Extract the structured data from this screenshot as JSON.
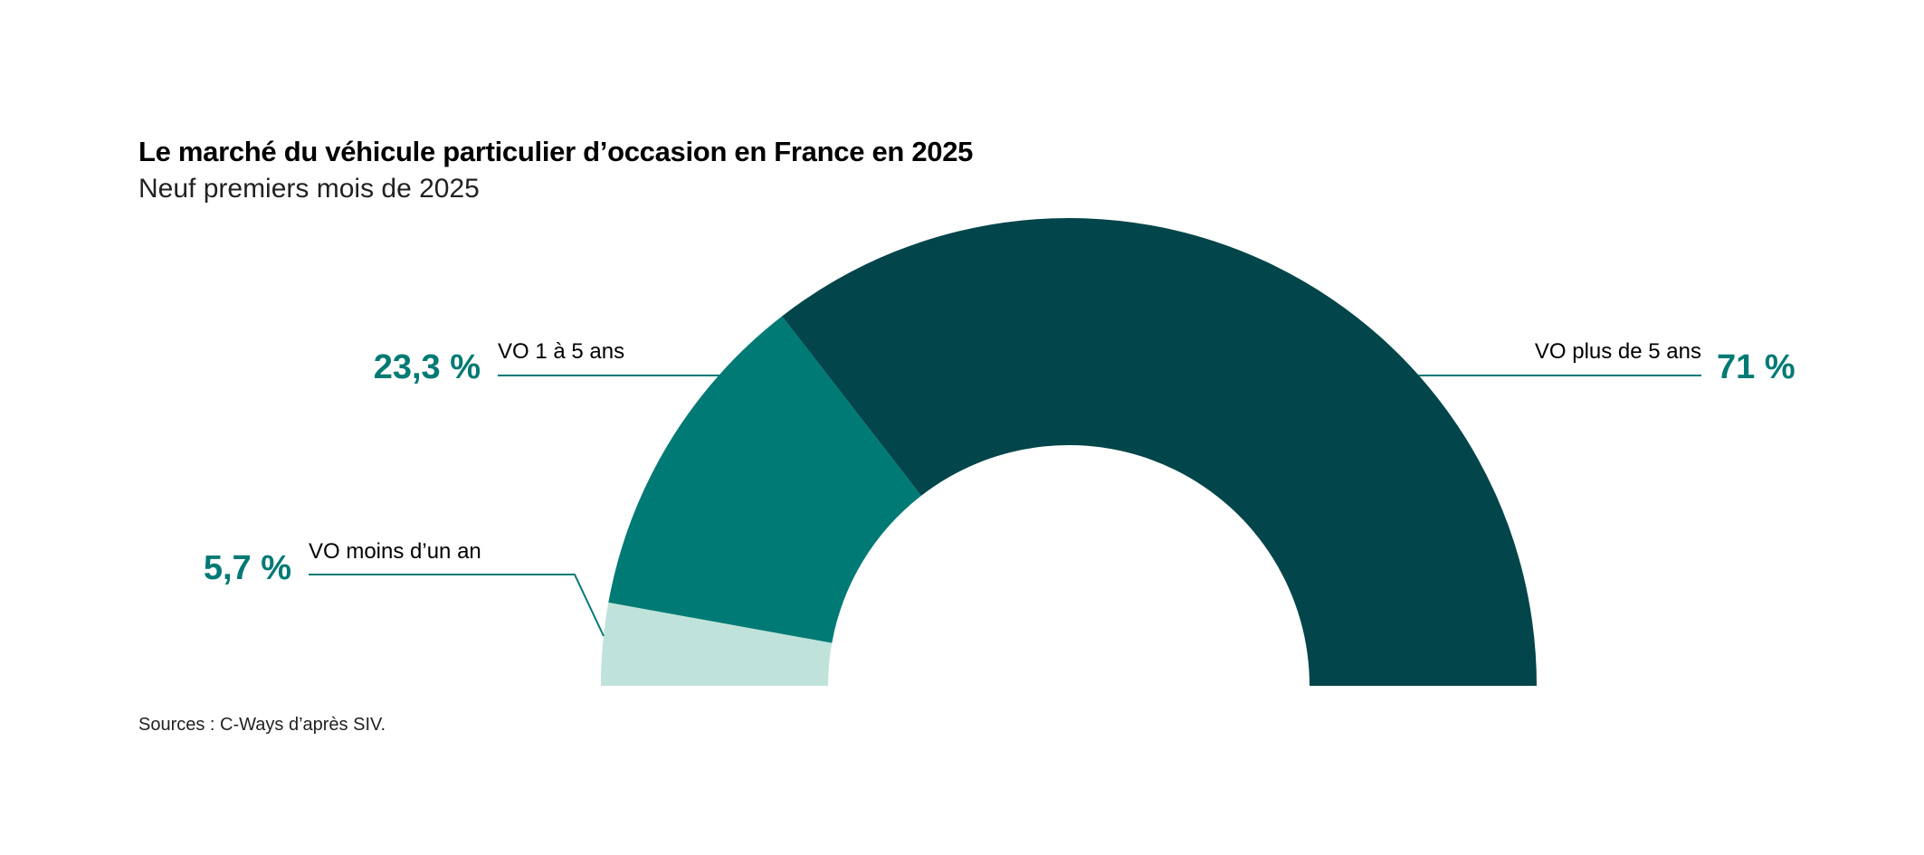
{
  "chart_data": {
    "type": "pie",
    "variant": "half-donut",
    "title": "Le marché du véhicule particulier d’occasion en France en 2025",
    "subtitle": "Neuf premiers mois de 2025",
    "source": "Sources : C-Ways d’après SIV.",
    "slices": [
      {
        "name": "VO moins d’un an",
        "value": 5.7,
        "label": "5,7 %",
        "color": "#bfe3da"
      },
      {
        "name": "VO 1 à 5 ans",
        "value": 23.3,
        "label": "23,3 %",
        "color": "#007a74"
      },
      {
        "name": "VO plus de 5 ans",
        "value": 71,
        "label": "71 %",
        "color": "#02454a"
      }
    ]
  }
}
